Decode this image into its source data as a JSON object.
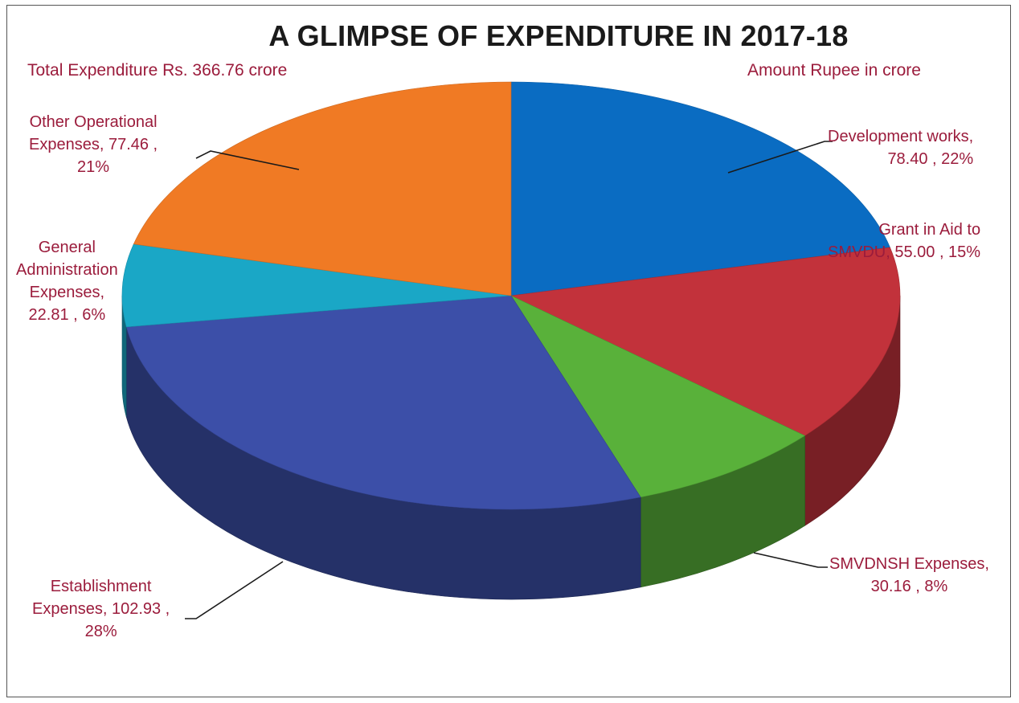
{
  "chart_data": {
    "type": "pie",
    "title": "A GLIMPSE OF EXPENDITURE IN 2017-18",
    "notes": {
      "total": "Total Expenditure Rs. 366.76 crore",
      "unit": "Amount Rupee in crore"
    },
    "slices": [
      {
        "name": "Development works",
        "value": 78.4,
        "percent": 22,
        "color": "#0a6cc2",
        "label_lines": [
          "Development works,",
          "78.40 , 22%"
        ]
      },
      {
        "name": "Grant in Aid to SMVDU",
        "value": 55.0,
        "percent": 15,
        "color": "#c2323b",
        "label_lines": [
          "Grant in Aid to",
          "SMVDU,  55.00 , 15%"
        ]
      },
      {
        "name": "SMVDNSH Expenses",
        "value": 30.16,
        "percent": 8,
        "color": "#59b13a",
        "label_lines": [
          "SMVDNSH Expenses,",
          "30.16 , 8%"
        ]
      },
      {
        "name": "Establishment Expenses",
        "value": 102.93,
        "percent": 28,
        "color": "#3c4fa8",
        "label_lines": [
          "Establishment",
          "Expenses,  102.93 ,",
          "28%"
        ]
      },
      {
        "name": "General Administration Expenses",
        "value": 22.81,
        "percent": 6,
        "color": "#1aa7c6",
        "label_lines": [
          "General",
          "Administration",
          "Expenses,",
          "22.81 , 6%"
        ]
      },
      {
        "name": "Other Operational Expenses",
        "value": 77.46,
        "percent": 21,
        "color": "#f07a24",
        "label_lines": [
          "Other Operational",
          "Expenses,  77.46 ,",
          "21%"
        ]
      }
    ]
  }
}
